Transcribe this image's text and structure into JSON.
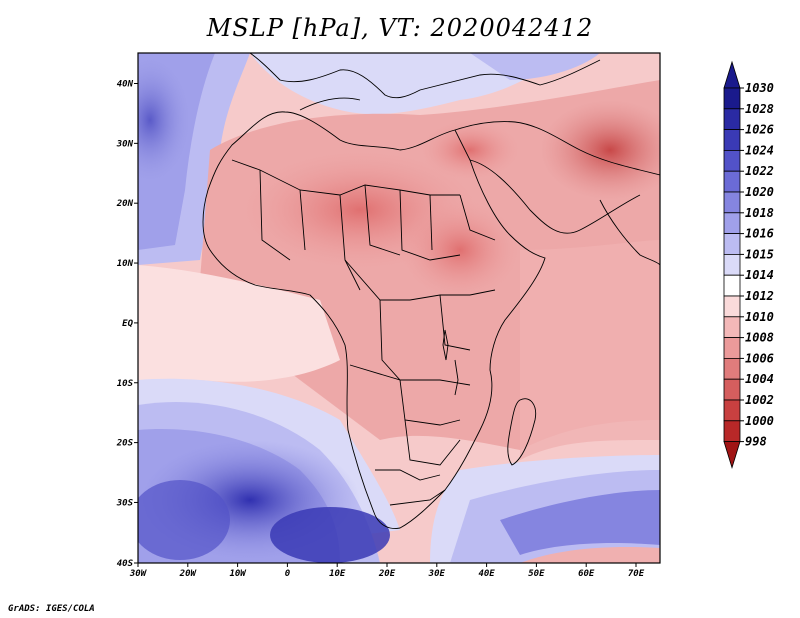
{
  "title": "MSLP [hPa], VT: 2020042412",
  "credit": "GrADS: IGES/COLA",
  "axes": {
    "lon_labels": [
      "30W",
      "20W",
      "10W",
      "0",
      "10E",
      "20E",
      "30E",
      "40E",
      "50E",
      "60E",
      "70E"
    ],
    "lat_labels": [
      "40N",
      "30N",
      "20N",
      "10N",
      "EQ",
      "10S",
      "20S",
      "30S",
      "40S"
    ]
  },
  "colorbar": {
    "levels": [
      "1030",
      "1028",
      "1026",
      "1024",
      "1022",
      "1020",
      "1018",
      "1016",
      "1015",
      "1014",
      "1012",
      "1010",
      "1008",
      "1006",
      "1004",
      "1002",
      "1000",
      "998"
    ],
    "colors": [
      "#1a1a8c",
      "#2a2aa3",
      "#3a3ab5",
      "#5252c8",
      "#6b6bd6",
      "#8585e0",
      "#a0a0ea",
      "#bcbcf2",
      "#dadaf8",
      "#ffffff",
      "#fadada",
      "#f3b8b8",
      "#eb9a9a",
      "#e07c7c",
      "#d55e5e",
      "#c84040",
      "#b82828",
      "#a01414"
    ]
  }
}
